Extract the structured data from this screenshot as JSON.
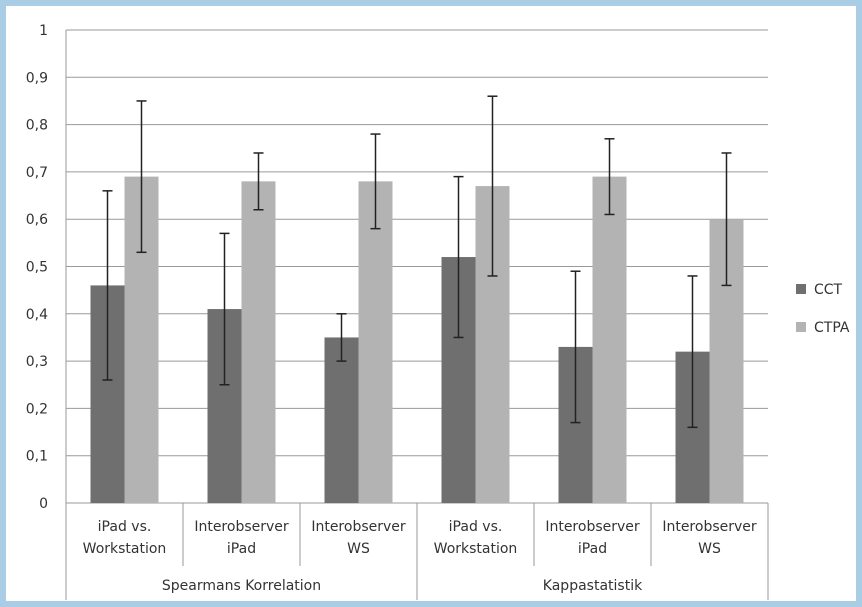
{
  "colors": {
    "CCT": "#6f6f6f",
    "CTPA": "#b3b3b3",
    "grid": "#9a9a9a",
    "frame": "#a9cde4"
  },
  "chart_data": {
    "type": "bar",
    "title": "",
    "xlabel": "",
    "ylabel": "",
    "ylim": [
      0,
      1
    ],
    "yticks": [
      "0",
      "0,1",
      "0,2",
      "0,3",
      "0,4",
      "0,5",
      "0,6",
      "0,7",
      "0,8",
      "0,9",
      "1"
    ],
    "grid": true,
    "legend_position": "right",
    "categories": [
      [
        "iPad vs.",
        "Workstation"
      ],
      [
        "Interobserver",
        "iPad"
      ],
      [
        "Interobserver",
        "WS"
      ],
      [
        "iPad vs.",
        "Workstation"
      ],
      [
        "Interobserver",
        "iPad"
      ],
      [
        "Interobserver",
        "WS"
      ]
    ],
    "groups": [
      {
        "label": "Spearmans Korrelation",
        "span": 3
      },
      {
        "label": "Kappastatistik",
        "span": 3
      }
    ],
    "series": [
      {
        "name": "CCT",
        "values": [
          0.46,
          0.41,
          0.35,
          0.52,
          0.33,
          0.32
        ],
        "error_low": [
          0.26,
          0.25,
          0.3,
          0.35,
          0.17,
          0.16
        ],
        "error_high": [
          0.66,
          0.57,
          0.4,
          0.69,
          0.49,
          0.48
        ]
      },
      {
        "name": "CTPA",
        "values": [
          0.69,
          0.68,
          0.68,
          0.67,
          0.69,
          0.6
        ],
        "error_low": [
          0.53,
          0.62,
          0.58,
          0.48,
          0.61,
          0.46
        ],
        "error_high": [
          0.85,
          0.74,
          0.78,
          0.86,
          0.77,
          0.74
        ]
      }
    ]
  }
}
